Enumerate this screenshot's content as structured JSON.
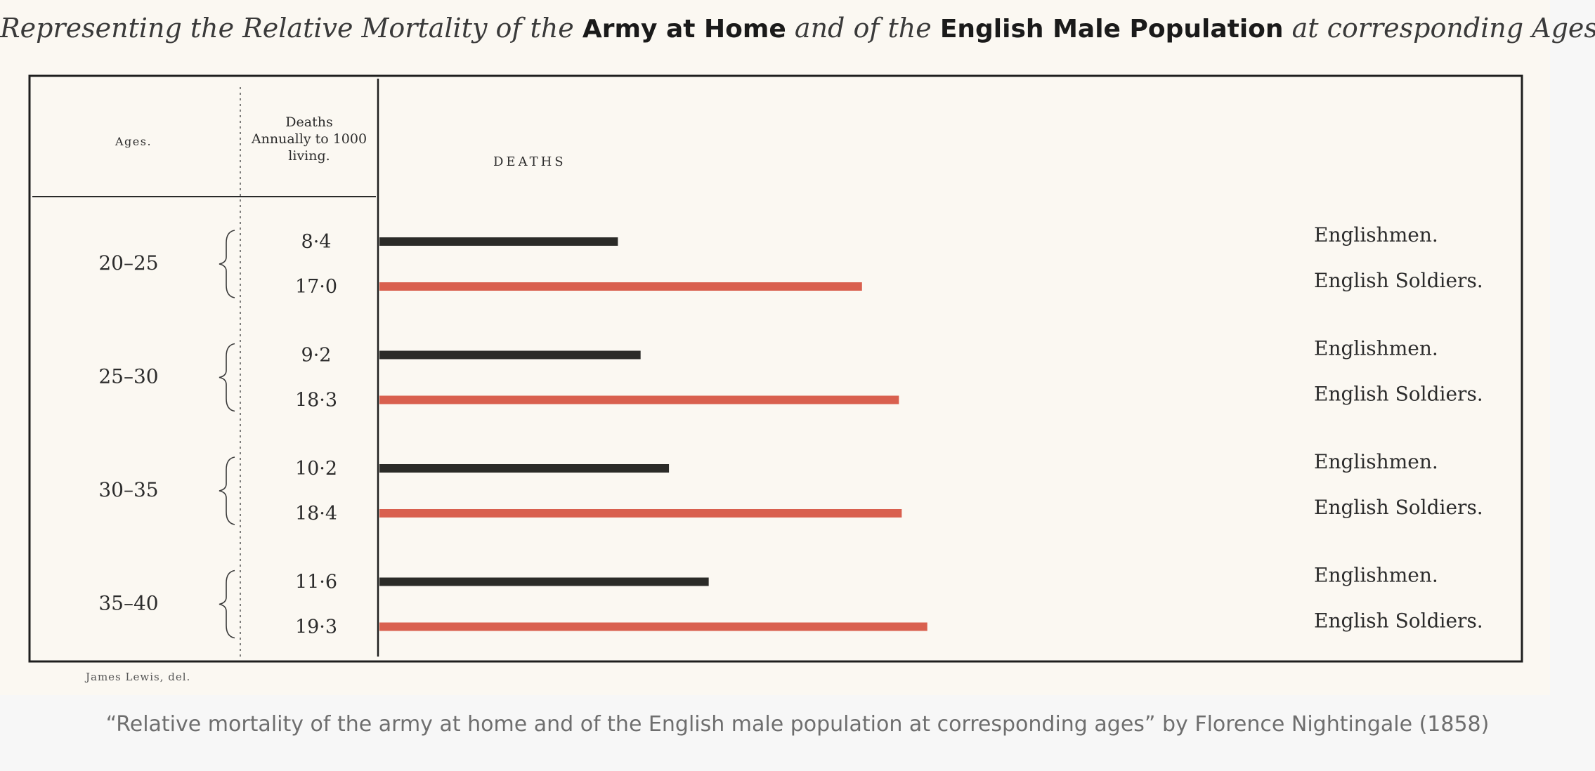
{
  "title": {
    "part1": "Representing the Relative Mortality of the",
    "part2": "Army at Home",
    "part3": "and of the",
    "part4": "English Male Population",
    "part5": "at corresponding Ages."
  },
  "chart_data": {
    "type": "bar",
    "orientation": "horizontal",
    "title": "Representing the Relative Mortality of the Army at Home and of the English Male Population at corresponding Ages.",
    "col_header_ages": "Ages.",
    "col_header_deaths_line1": "Deaths",
    "col_header_deaths_line2": "Annually to 1000",
    "col_header_deaths_line3": "living.",
    "bar_area_header": "DEATHS",
    "categories": [
      "20–25",
      "25–30",
      "30–35",
      "35–40"
    ],
    "series": [
      {
        "name": "Englishmen.",
        "values": [
          8.4,
          9.2,
          10.2,
          11.6
        ],
        "labels": [
          "8·4",
          "9·2",
          "10·2",
          "11·6"
        ],
        "color": "#2b2b28"
      },
      {
        "name": "English Soldiers.",
        "values": [
          17.0,
          18.3,
          18.4,
          19.3
        ],
        "labels": [
          "17·0",
          "18·3",
          "18·4",
          "19·3"
        ],
        "color": "#d9604f"
      }
    ],
    "xlim": [
      0,
      50
    ],
    "grid": false
  },
  "credit": "James Lewis, del.",
  "caption": "“Relative mortality of the army at home and of the English male population at corresponding ages” by Florence Nightingale (1858)"
}
